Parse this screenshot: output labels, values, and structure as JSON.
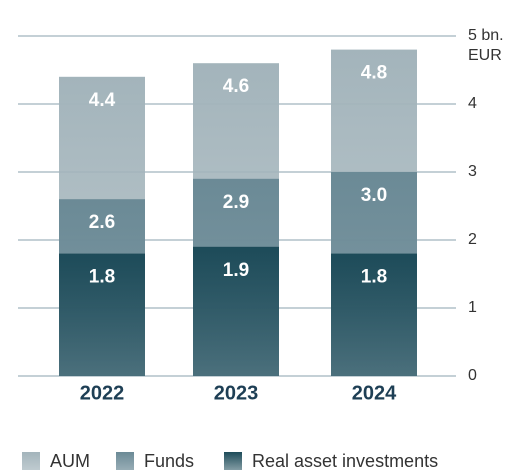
{
  "chart_data": {
    "type": "bar",
    "categories": [
      "2022",
      "2023",
      "2024"
    ],
    "series": [
      {
        "name": "AUM",
        "color": "#a3b4bb",
        "values": [
          4.4,
          4.6,
          4.8
        ],
        "value_labels": [
          "4.4",
          "4.6",
          "4.8"
        ]
      },
      {
        "name": "Funds",
        "color": "#6b8a96",
        "values": [
          2.6,
          2.9,
          3.0
        ],
        "value_labels": [
          "2.6",
          "2.9",
          "3.0"
        ]
      },
      {
        "name": "Real asset investments",
        "color": "#1d4b59",
        "values": [
          1.8,
          1.9,
          1.8
        ],
        "value_labels": [
          "1.8",
          "1.9",
          "1.8"
        ]
      }
    ],
    "ylim": [
      0,
      5
    ],
    "yticks": [
      0,
      1,
      2,
      3,
      4,
      {
        "value": 5,
        "label": "5 bn."
      }
    ],
    "ylabel": "EUR",
    "grid": true,
    "legend": "bottom"
  }
}
